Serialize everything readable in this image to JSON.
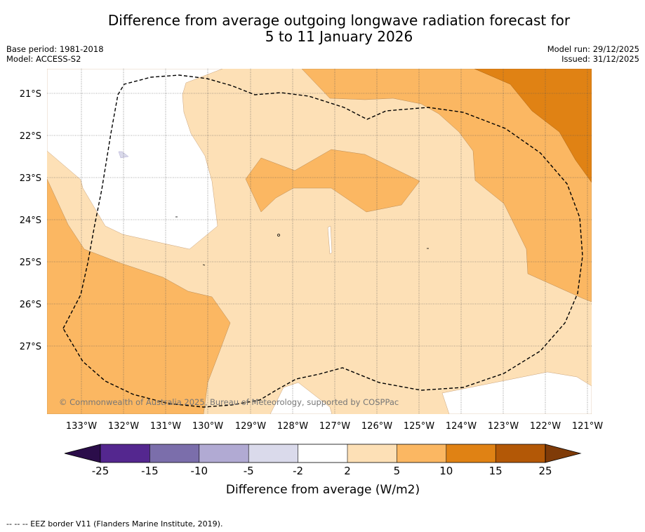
{
  "title_line1": "Difference from average outgoing longwave radiation forecast for",
  "title_line2": "5 to 11 January 2026",
  "base_period": "Base period: 1981-2018",
  "model": "Model: ACCESS-S2",
  "model_run": "Model run: 29/12/2025",
  "issued": "Issued: 31/12/2025",
  "copyright": "© Commonwealth of Australia 2025, Bureau of Meteorology, supported by COSPPac",
  "footer_note": "--  --  -- EEZ border V11 (Flanders Marine Institute, 2019).",
  "lat_labels": [
    "21°S",
    "22°S",
    "23°S",
    "24°S",
    "25°S",
    "26°S",
    "27°S"
  ],
  "lon_labels": [
    "133°W",
    "132°W",
    "131°W",
    "130°W",
    "129°W",
    "128°W",
    "127°W",
    "126°W",
    "125°W",
    "124°W",
    "123°W",
    "122°W",
    "121°W"
  ],
  "colorbar": {
    "label": "Difference from average (W/m2)",
    "ticks": [
      "-25",
      "-15",
      "-10",
      "-5",
      "-2",
      "2",
      "5",
      "10",
      "15",
      "25"
    ],
    "colors": [
      "#2b0d4a",
      "#54278f",
      "#7b6eab",
      "#b1aad3",
      "#dadaeb",
      "#ffffff",
      "#fde0b6",
      "#fbb762",
      "#e08214",
      "#b35806",
      "#7f3b08"
    ]
  },
  "colors": {
    "lvl_2_5": "#fde0b6",
    "lvl_5_10": "#fbb762",
    "lvl_10_15": "#e08214",
    "lvl_neg": "#dadaeb",
    "land_dot": "#000000"
  }
}
